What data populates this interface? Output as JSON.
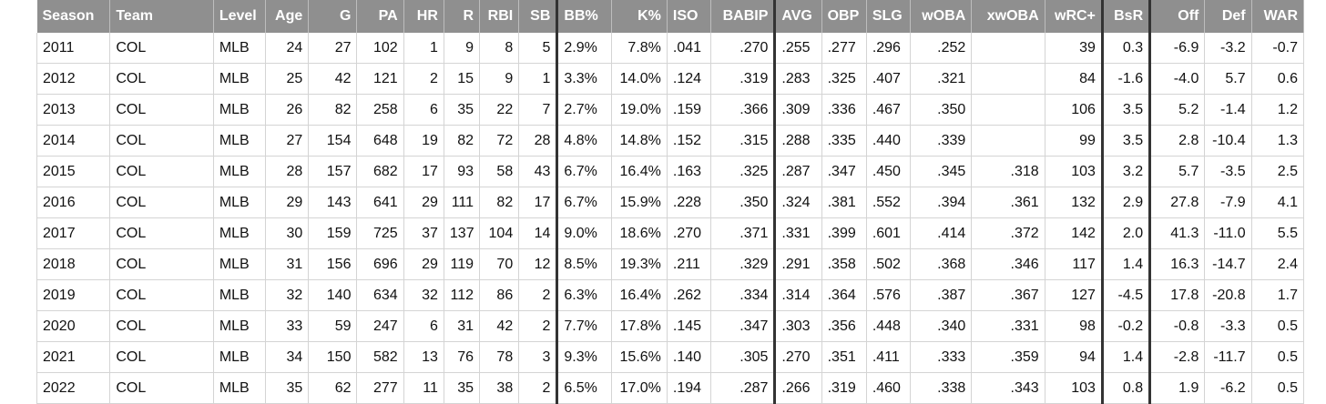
{
  "table": {
    "header": [
      "Season",
      "Team",
      "Level",
      "Age",
      "G",
      "PA",
      "HR",
      "R",
      "RBI",
      "SB",
      "BB%",
      "K%",
      "ISO",
      "BABIP",
      "AVG",
      "OBP",
      "SLG",
      "wOBA",
      "xwOBA",
      "wRC+",
      "BsR",
      "Off",
      "Def",
      "WAR"
    ],
    "rows": [
      [
        "2011",
        "COL",
        "MLB",
        "24",
        "27",
        "102",
        "1",
        "9",
        "8",
        "5",
        "2.9%",
        "7.8%",
        ".041",
        ".270",
        ".255",
        ".277",
        ".296",
        ".252",
        null,
        "39",
        "0.3",
        "-6.9",
        "-3.2",
        "-0.7"
      ],
      [
        "2012",
        "COL",
        "MLB",
        "25",
        "42",
        "121",
        "2",
        "15",
        "9",
        "1",
        "3.3%",
        "14.0%",
        ".124",
        ".319",
        ".283",
        ".325",
        ".407",
        ".321",
        null,
        "84",
        "-1.6",
        "-4.0",
        "5.7",
        "0.6"
      ],
      [
        "2013",
        "COL",
        "MLB",
        "26",
        "82",
        "258",
        "6",
        "35",
        "22",
        "7",
        "2.7%",
        "19.0%",
        ".159",
        ".366",
        ".309",
        ".336",
        ".467",
        ".350",
        null,
        "106",
        "3.5",
        "5.2",
        "-1.4",
        "1.2"
      ],
      [
        "2014",
        "COL",
        "MLB",
        "27",
        "154",
        "648",
        "19",
        "82",
        "72",
        "28",
        "4.8%",
        "14.8%",
        ".152",
        ".315",
        ".288",
        ".335",
        ".440",
        ".339",
        null,
        "99",
        "3.5",
        "2.8",
        "-10.4",
        "1.3"
      ],
      [
        "2015",
        "COL",
        "MLB",
        "28",
        "157",
        "682",
        "17",
        "93",
        "58",
        "43",
        "6.7%",
        "16.4%",
        ".163",
        ".325",
        ".287",
        ".347",
        ".450",
        ".345",
        ".318",
        "103",
        "3.2",
        "5.7",
        "-3.5",
        "2.5"
      ],
      [
        "2016",
        "COL",
        "MLB",
        "29",
        "143",
        "641",
        "29",
        "111",
        "82",
        "17",
        "6.7%",
        "15.9%",
        ".228",
        ".350",
        ".324",
        ".381",
        ".552",
        ".394",
        ".361",
        "132",
        "2.9",
        "27.8",
        "-7.9",
        "4.1"
      ],
      [
        "2017",
        "COL",
        "MLB",
        "30",
        "159",
        "725",
        "37",
        "137",
        "104",
        "14",
        "9.0%",
        "18.6%",
        ".270",
        ".371",
        ".331",
        ".399",
        ".601",
        ".414",
        ".372",
        "142",
        "2.0",
        "41.3",
        "-11.0",
        "5.5"
      ],
      [
        "2018",
        "COL",
        "MLB",
        "31",
        "156",
        "696",
        "29",
        "119",
        "70",
        "12",
        "8.5%",
        "19.3%",
        ".211",
        ".329",
        ".291",
        ".358",
        ".502",
        ".368",
        ".346",
        "117",
        "1.4",
        "16.3",
        "-14.7",
        "2.4"
      ],
      [
        "2019",
        "COL",
        "MLB",
        "32",
        "140",
        "634",
        "32",
        "112",
        "86",
        "2",
        "6.3%",
        "16.4%",
        ".262",
        ".334",
        ".314",
        ".364",
        ".576",
        ".387",
        ".367",
        "127",
        "-4.5",
        "17.8",
        "-20.8",
        "1.7"
      ],
      [
        "2020",
        "COL",
        "MLB",
        "33",
        "59",
        "247",
        "6",
        "31",
        "42",
        "2",
        "7.7%",
        "17.8%",
        ".145",
        ".347",
        ".303",
        ".356",
        ".448",
        ".340",
        ".331",
        "98",
        "-0.2",
        "-0.8",
        "-3.3",
        "0.5"
      ],
      [
        "2021",
        "COL",
        "MLB",
        "34",
        "150",
        "582",
        "13",
        "76",
        "78",
        "3",
        "9.3%",
        "15.6%",
        ".140",
        ".305",
        ".270",
        ".351",
        ".411",
        ".333",
        ".359",
        "94",
        "1.4",
        "-2.8",
        "-11.7",
        "0.5"
      ],
      [
        "2022",
        "COL",
        "MLB",
        "35",
        "62",
        "277",
        "11",
        "35",
        "38",
        "2",
        "6.5%",
        "17.0%",
        ".194",
        ".287",
        ".266",
        ".319",
        ".460",
        ".338",
        ".343",
        "103",
        "0.8",
        "1.9",
        "-6.2",
        "0.5"
      ]
    ]
  }
}
